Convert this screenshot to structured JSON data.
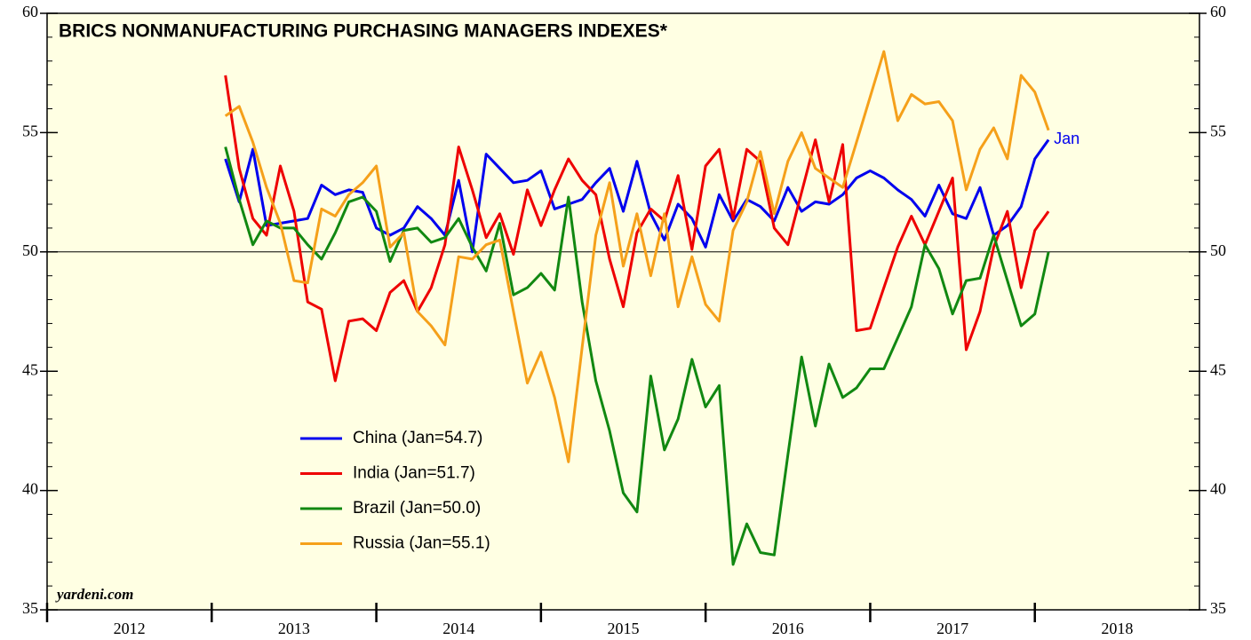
{
  "chart_data": {
    "type": "line",
    "title": "BRICS NONMANUFACTURING PURCHASING MANAGERS INDEXES*",
    "source": "yardeni.com",
    "annotation": "Jan",
    "x": [
      2013.083,
      2013.167,
      2013.25,
      2013.333,
      2013.417,
      2013.5,
      2013.583,
      2013.667,
      2013.75,
      2013.833,
      2013.917,
      2014,
      2014.083,
      2014.167,
      2014.25,
      2014.333,
      2014.417,
      2014.5,
      2014.583,
      2014.667,
      2014.75,
      2014.833,
      2014.917,
      2015,
      2015.083,
      2015.167,
      2015.25,
      2015.333,
      2015.417,
      2015.5,
      2015.583,
      2015.667,
      2015.75,
      2015.833,
      2015.917,
      2016,
      2016.083,
      2016.167,
      2016.25,
      2016.333,
      2016.417,
      2016.5,
      2016.583,
      2016.667,
      2016.75,
      2016.833,
      2016.917,
      2017,
      2017.083,
      2017.167,
      2017.25,
      2017.333,
      2017.417,
      2017.5,
      2017.583,
      2017.667,
      2017.75,
      2017.833,
      2017.917,
      2018,
      2018.083
    ],
    "xlim": [
      2012,
      2019
    ],
    "xticks": [
      2012,
      2013,
      2014,
      2015,
      2016,
      2017,
      2018
    ],
    "ylim": [
      35,
      60
    ],
    "yticks": [
      35,
      40,
      45,
      50,
      55,
      60
    ],
    "y2lim": [
      35,
      60
    ],
    "y2ticks": [
      35,
      40,
      45,
      50,
      55,
      60
    ],
    "reference_line": 50,
    "legend": "lower-left",
    "series": [
      {
        "name": "China (Jan=54.7)",
        "color": "#0000ee",
        "values": [
          53.9,
          52.1,
          54.3,
          51.1,
          51.2,
          51.3,
          51.4,
          52.8,
          52.4,
          52.6,
          52.5,
          51.0,
          50.7,
          51.0,
          51.9,
          51.4,
          50.7,
          53.0,
          50.0,
          54.1,
          53.5,
          52.9,
          53.0,
          53.4,
          51.8,
          52.0,
          52.2,
          52.9,
          53.5,
          51.7,
          53.8,
          51.6,
          50.5,
          52.0,
          51.4,
          50.2,
          52.4,
          51.3,
          52.2,
          51.9,
          51.3,
          52.7,
          51.7,
          52.1,
          52.0,
          52.4,
          53.1,
          53.4,
          53.1,
          52.6,
          52.2,
          51.5,
          52.8,
          51.6,
          51.4,
          52.7,
          50.7,
          51.1,
          51.9,
          53.9,
          54.7
        ]
      },
      {
        "name": "India (Jan=51.7)",
        "color": "#ee0000",
        "values": [
          57.4,
          53.5,
          51.4,
          50.7,
          53.6,
          51.7,
          47.9,
          47.6,
          44.6,
          47.1,
          47.2,
          46.7,
          48.3,
          48.8,
          47.5,
          48.5,
          50.3,
          54.4,
          52.6,
          50.6,
          51.6,
          49.9,
          52.6,
          51.1,
          52.6,
          53.9,
          53.0,
          52.4,
          49.7,
          47.7,
          50.8,
          51.8,
          51.3,
          53.2,
          50.1,
          53.6,
          54.3,
          51.4,
          54.3,
          53.8,
          51.0,
          50.3,
          52.5,
          54.7,
          52.1,
          54.5,
          46.7,
          46.8,
          48.5,
          50.2,
          51.5,
          50.3,
          51.7,
          53.1,
          45.9,
          47.5,
          50.2,
          51.7,
          48.5,
          50.9,
          51.7
        ]
      },
      {
        "name": "Brazil (Jan=50.0)",
        "color": "#118811",
        "values": [
          54.4,
          52.2,
          50.3,
          51.3,
          51.0,
          51.0,
          50.3,
          49.7,
          50.8,
          52.1,
          52.3,
          51.7,
          49.6,
          50.9,
          51.0,
          50.4,
          50.6,
          51.4,
          50.2,
          49.2,
          51.2,
          48.2,
          48.5,
          49.1,
          48.4,
          52.3,
          47.9,
          44.6,
          42.5,
          39.9,
          39.1,
          44.8,
          41.7,
          43.0,
          45.5,
          43.5,
          44.4,
          36.9,
          38.6,
          37.4,
          37.3,
          41.5,
          45.6,
          42.7,
          45.3,
          43.9,
          44.3,
          45.1,
          45.1,
          46.4,
          47.7,
          50.3,
          49.3,
          47.4,
          48.8,
          48.9,
          50.7,
          48.8,
          46.9,
          47.4,
          50.0
        ]
      },
      {
        "name": "Russia (Jan=55.1)",
        "color": "#f5a01a",
        "values": [
          55.7,
          56.1,
          54.6,
          52.7,
          51.2,
          48.8,
          48.7,
          51.8,
          51.5,
          52.4,
          52.9,
          53.6,
          50.2,
          50.8,
          47.5,
          46.9,
          46.1,
          49.8,
          49.7,
          50.3,
          50.5,
          47.5,
          44.5,
          45.8,
          43.9,
          41.2,
          46.0,
          50.7,
          52.9,
          49.4,
          51.6,
          49.0,
          51.6,
          47.7,
          49.8,
          47.8,
          47.1,
          50.9,
          52.1,
          54.2,
          51.6,
          53.8,
          55.0,
          53.5,
          53.1,
          52.7,
          54.6,
          56.5,
          58.4,
          55.5,
          56.6,
          56.2,
          56.3,
          55.5,
          52.6,
          54.3,
          55.2,
          53.9,
          57.4,
          56.7,
          55.1
        ]
      }
    ]
  }
}
